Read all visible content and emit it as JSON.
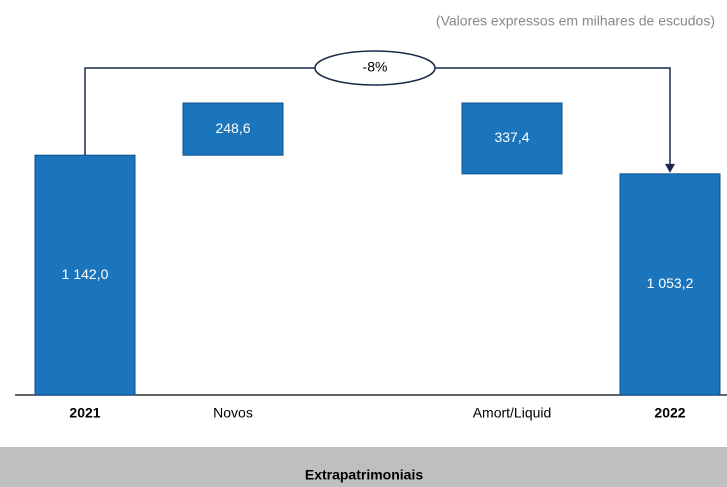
{
  "chart_data": {
    "type": "waterfall",
    "subtitle": "(Valores expressos em milhares de escudos)",
    "categories": [
      "2021",
      "Novos",
      "Amort/Liquid",
      "2022"
    ],
    "kinds": [
      "total",
      "increase",
      "decrease",
      "total"
    ],
    "values": [
      1142.0,
      248.6,
      337.4,
      1053.2
    ],
    "value_labels": [
      "1 142,0",
      "248,6",
      "337,4",
      "1 053,2"
    ],
    "color": "#1b75bc",
    "annotation": "-8%",
    "footer": "Extrapatrimoniais"
  }
}
